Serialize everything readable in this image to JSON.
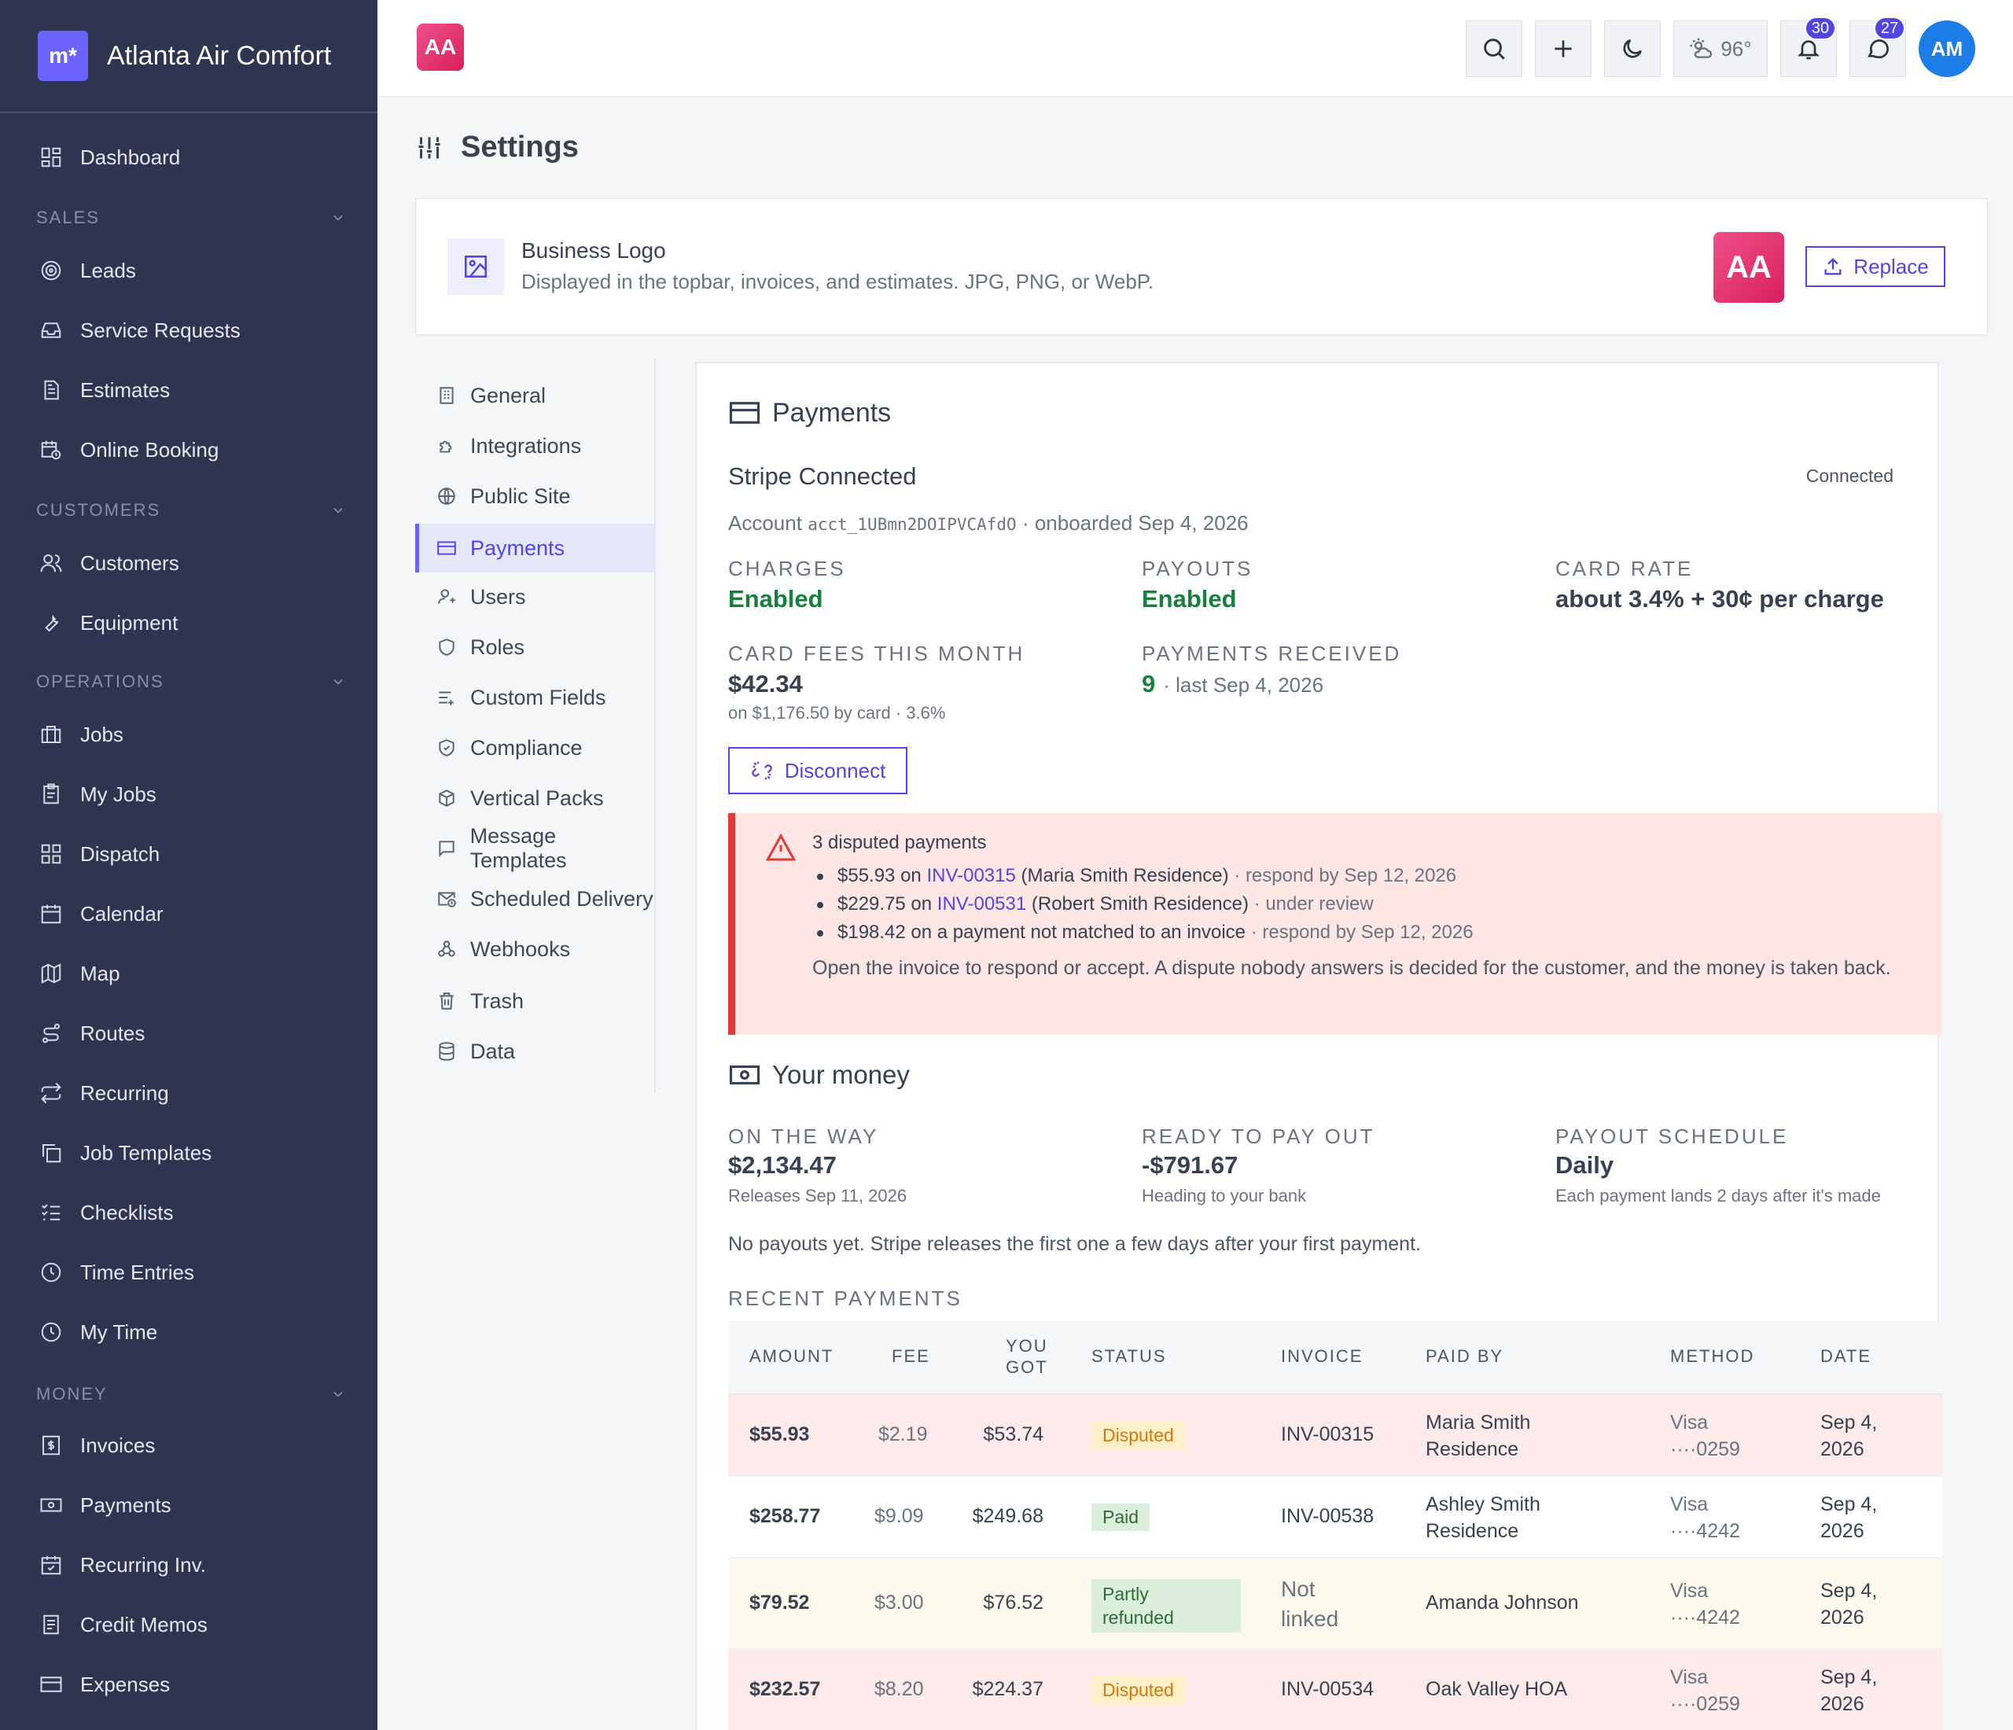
{
  "brand": {
    "logo_text": "m*",
    "name": "Atlanta Air Comfort"
  },
  "sidebar": {
    "dashboard": "Dashboard",
    "sections": [
      {
        "title": "SALES",
        "items": [
          "Leads",
          "Service Requests",
          "Estimates",
          "Online Booking"
        ]
      },
      {
        "title": "CUSTOMERS",
        "items": [
          "Customers",
          "Equipment"
        ]
      },
      {
        "title": "OPERATIONS",
        "items": [
          "Jobs",
          "My Jobs",
          "Dispatch",
          "Calendar",
          "Map",
          "Routes",
          "Recurring",
          "Job Templates",
          "Checklists",
          "Time Entries",
          "My Time"
        ]
      },
      {
        "title": "MONEY",
        "items": [
          "Invoices",
          "Payments",
          "Recurring Inv.",
          "Credit Memos",
          "Expenses"
        ]
      }
    ]
  },
  "topbar": {
    "badge": "AA",
    "weather": "96°",
    "notifications_count": "30",
    "messages_count": "27",
    "avatar": "AM"
  },
  "page": {
    "title": "Settings"
  },
  "logo_card": {
    "title": "Business Logo",
    "description": "Displayed in the topbar, invoices, and estimates. JPG, PNG, or WebP.",
    "preview": "AA",
    "replace_label": "Replace"
  },
  "settings_nav": [
    "General",
    "Integrations",
    "Public Site",
    "Payments",
    "Users",
    "Roles",
    "Custom Fields",
    "Compliance",
    "Vertical Packs",
    "Message Templates",
    "Scheduled Delivery",
    "Webhooks",
    "Trash",
    "Data"
  ],
  "settings_nav_active": "Payments",
  "payments": {
    "title": "Payments",
    "stripe_title": "Stripe Connected",
    "status": "Connected",
    "account_prefix": "Account",
    "account_id": "acct_1UBmn2DOIPVCAfdO",
    "onboarded": "· onboarded Sep 4, 2026",
    "charges_label": "CHARGES",
    "charges_value": "Enabled",
    "payouts_label": "PAYOUTS",
    "payouts_value": "Enabled",
    "card_rate_label": "CARD RATE",
    "card_rate_value": "about 3.4% + 30¢ per charge",
    "fees_label": "CARD FEES THIS MONTH",
    "fees_value": "$42.34",
    "fees_sub": "on $1,176.50 by card · 3.6%",
    "received_label": "PAYMENTS RECEIVED",
    "received_count": "9",
    "received_sub": "· last Sep 4, 2026",
    "disconnect_label": "Disconnect"
  },
  "disputes": {
    "title": "3 disputed payments",
    "items": [
      {
        "amount": "$55.93 on ",
        "invoice": "INV-00315",
        "who": " (Maria Smith Residence)",
        "note": " · respond by Sep 12, 2026"
      },
      {
        "amount": "$229.75 on ",
        "invoice": "INV-00531",
        "who": " (Robert Smith Residence)",
        "note": " · under review"
      },
      {
        "amount": "$198.42 on a payment not matched to an invoice",
        "invoice": "",
        "who": "",
        "note": " · respond by Sep 12, 2026"
      }
    ],
    "message": "Open the invoice to respond or accept. A dispute nobody answers is decided for the customer, and the money is taken back."
  },
  "money": {
    "title": "Your money",
    "on_way_label": "ON THE WAY",
    "on_way_value": "$2,134.47",
    "on_way_sub": "Releases Sep 11, 2026",
    "ready_label": "READY TO PAY OUT",
    "ready_value": "-$791.67",
    "ready_sub": "Heading to your bank",
    "schedule_label": "PAYOUT SCHEDULE",
    "schedule_value": "Daily",
    "schedule_sub": "Each payment lands 2 days after it's made",
    "note": "No payouts yet. Stripe releases the first one a few days after your first payment."
  },
  "recent": {
    "title": "RECENT PAYMENTS",
    "headers": {
      "amount": "AMOUNT",
      "fee": "FEE",
      "got1": "YOU",
      "got2": "GOT",
      "status": "STATUS",
      "invoice": "INVOICE",
      "paid_by": "PAID BY",
      "method": "METHOD",
      "date": "DATE"
    },
    "rows": [
      {
        "amount": "$55.93",
        "fee": "$2.19",
        "got": "$53.74",
        "status": "Disputed",
        "invoice": "INV-00315",
        "paid_by_1": "Maria Smith",
        "paid_by_2": "Residence",
        "method_1": "Visa",
        "method_2": "····0259",
        "date_1": "Sep 4,",
        "date_2": "2026"
      },
      {
        "amount": "$258.77",
        "fee": "$9.09",
        "got": "$249.68",
        "status": "Paid",
        "invoice": "INV-00538",
        "paid_by_1": "Ashley Smith",
        "paid_by_2": "Residence",
        "method_1": "Visa",
        "method_2": "····4242",
        "date_1": "Sep 4,",
        "date_2": "2026"
      },
      {
        "amount": "$79.52",
        "fee": "$3.00",
        "got": "$76.52",
        "status_1": "Partly",
        "status_2": "refunded",
        "invoice_1": "Not",
        "invoice_2": "linked",
        "paid_by": "Amanda Johnson",
        "method_1": "Visa",
        "method_2": "····4242",
        "date_1": "Sep 4,",
        "date_2": "2026"
      },
      {
        "amount": "$232.57",
        "fee": "$8.20",
        "got": "$224.37",
        "status": "Disputed",
        "invoice": "INV-00534",
        "paid_by": "Oak Valley HOA",
        "method_1": "Visa",
        "method_2": "····0259",
        "date_1": "Sep 4,",
        "date_2": "2026"
      }
    ]
  },
  "colors": {
    "sidebar_bg": "#2f3450",
    "accent": "#4f46e5",
    "success": "#15803d",
    "danger": "#e03a3a",
    "brand_badge": "#e0306f"
  }
}
